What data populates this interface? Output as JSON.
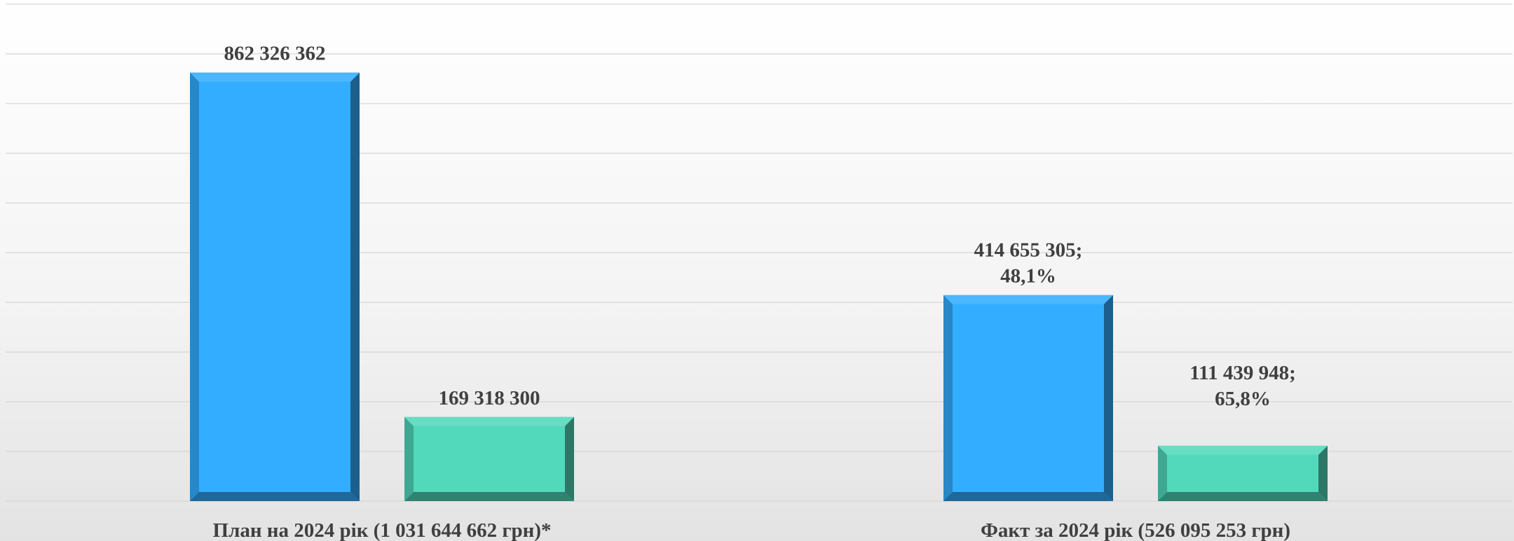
{
  "chart_data": {
    "type": "bar",
    "categories": [
      "План на 2024 рік (1 031 644 662 грн)*",
      "Факт за 2024 рік (526 095 253 грн)"
    ],
    "series": [
      {
        "color": "#33adff",
        "values": [
          862326362,
          414655305
        ]
      },
      {
        "color": "#52d8bb",
        "values": [
          169318300,
          111439948
        ]
      }
    ],
    "data_labels": [
      [
        "862 326 362",
        "169 318 300"
      ],
      [
        [
          "414 655 305;",
          "48,1%"
        ],
        [
          "111 439 948;",
          "65,8%"
        ]
      ]
    ],
    "ylim": [
      0,
      1000000000
    ],
    "grid": true,
    "legend": "none"
  }
}
